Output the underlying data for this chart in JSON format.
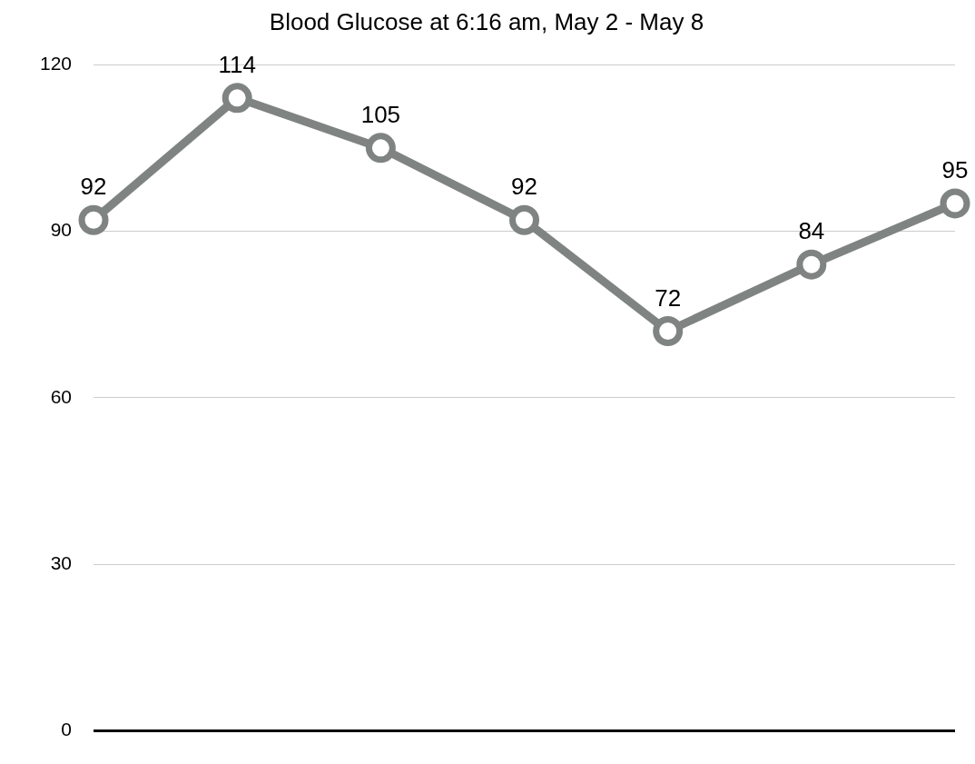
{
  "chart_data": {
    "type": "line",
    "title": "Blood Glucose at 6:16 am, May 2 - May 8",
    "categories": [
      null,
      null,
      null,
      null,
      null,
      null,
      null
    ],
    "series": [
      {
        "color": "#7f8482",
        "values": [
          92,
          114,
          105,
          92,
          72,
          84,
          95
        ]
      }
    ],
    "ylim": [
      0,
      120
    ],
    "yticks": [
      0,
      30,
      60,
      90,
      120
    ],
    "grid": "y",
    "tick_labels": "y",
    "marker": "circle",
    "line_style": "solid",
    "data_labels": true
  }
}
